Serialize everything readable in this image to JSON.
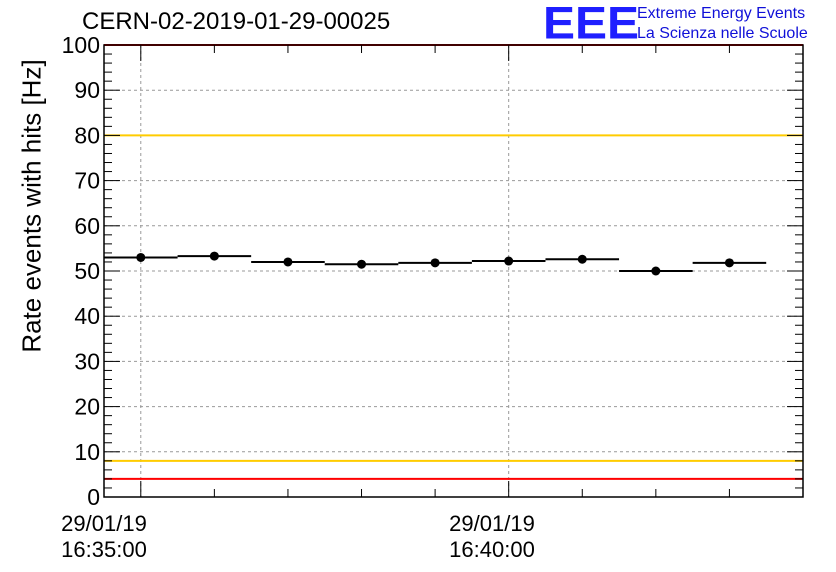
{
  "chart_data": {
    "type": "scatter",
    "title": "CERN-02-2019-01-29-00025",
    "ylabel": "Rate events with hits [Hz]",
    "xlabel": "",
    "ylim": [
      0,
      100
    ],
    "yticks": [
      0,
      10,
      20,
      30,
      40,
      50,
      60,
      70,
      80,
      90,
      100
    ],
    "xlim": [
      "16:34:30",
      "16:44:00"
    ],
    "xtick_labels": [
      {
        "date": "29/01/19",
        "time": "16:35:00"
      },
      {
        "date": "29/01/19",
        "time": "16:40:00"
      }
    ],
    "grid": true,
    "points": [
      {
        "x_start": "16:34:30",
        "x_end": "16:35:30",
        "y": 53
      },
      {
        "x_start": "16:35:30",
        "x_end": "16:36:30",
        "y": 53.3
      },
      {
        "x_start": "16:36:30",
        "x_end": "16:37:30",
        "y": 52
      },
      {
        "x_start": "16:37:30",
        "x_end": "16:38:30",
        "y": 51.5
      },
      {
        "x_start": "16:38:30",
        "x_end": "16:39:30",
        "y": 51.8
      },
      {
        "x_start": "16:39:30",
        "x_end": "16:40:30",
        "y": 52.2
      },
      {
        "x_start": "16:40:30",
        "x_end": "16:41:30",
        "y": 52.6
      },
      {
        "x_start": "16:41:30",
        "x_end": "16:42:30",
        "y": 50
      },
      {
        "x_start": "16:42:30",
        "x_end": "16:43:30",
        "y": 51.8
      }
    ],
    "reference_lines": [
      {
        "y": 100,
        "color": "#ff0000"
      },
      {
        "y": 80,
        "color": "#ffcc00"
      },
      {
        "y": 8,
        "color": "#ffcc00"
      },
      {
        "y": 4,
        "color": "#ff0000"
      }
    ]
  },
  "logo": {
    "mark": "EEE",
    "line1": "Extreme Energy Events",
    "line2": "La Scienza nelle Scuole",
    "color": "#1f1fff"
  }
}
